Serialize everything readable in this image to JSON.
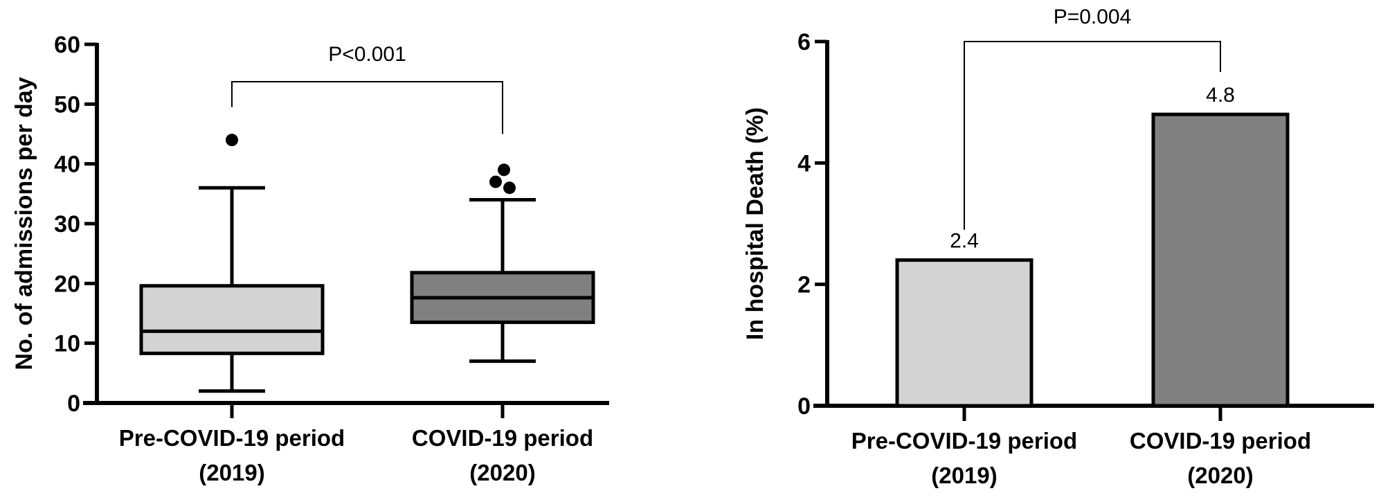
{
  "chart_data": [
    {
      "type": "box",
      "ylabel": "No. of admissions per day",
      "ylim": [
        0,
        60
      ],
      "yticks": [
        0,
        10,
        20,
        30,
        40,
        50,
        60
      ],
      "categories": [
        {
          "line1": "Pre-COVID-19 period",
          "line2": "(2019)"
        },
        {
          "line1": "COVID-19 period",
          "line2": "(2020)"
        }
      ],
      "boxes": [
        {
          "whisker_low": 2,
          "q1": 8.3,
          "median": 12,
          "q3": 19.6,
          "whisker_high": 36,
          "outliers": [
            44
          ],
          "fill": "#d3d3d3"
        },
        {
          "whisker_low": 7,
          "q1": 13.5,
          "median": 17.6,
          "q3": 21.8,
          "whisker_high": 34,
          "outliers": [
            37,
            36,
            39
          ],
          "fill": "#808080"
        }
      ],
      "annotation": "P<0.001",
      "grid": false
    },
    {
      "type": "bar",
      "ylabel": "In hospital Death (%)",
      "ylim": [
        0,
        6
      ],
      "yticks": [
        0,
        2,
        4,
        6
      ],
      "categories": [
        {
          "line1": "Pre-COVID-19 period",
          "line2": "(2019)"
        },
        {
          "line1": "COVID-19 period",
          "line2": "(2020)"
        }
      ],
      "values": [
        2.4,
        4.8
      ],
      "value_labels": [
        "2.4",
        "4.8"
      ],
      "colors": [
        "#d3d3d3",
        "#808080"
      ],
      "annotation": "P=0.004",
      "grid": false
    }
  ]
}
